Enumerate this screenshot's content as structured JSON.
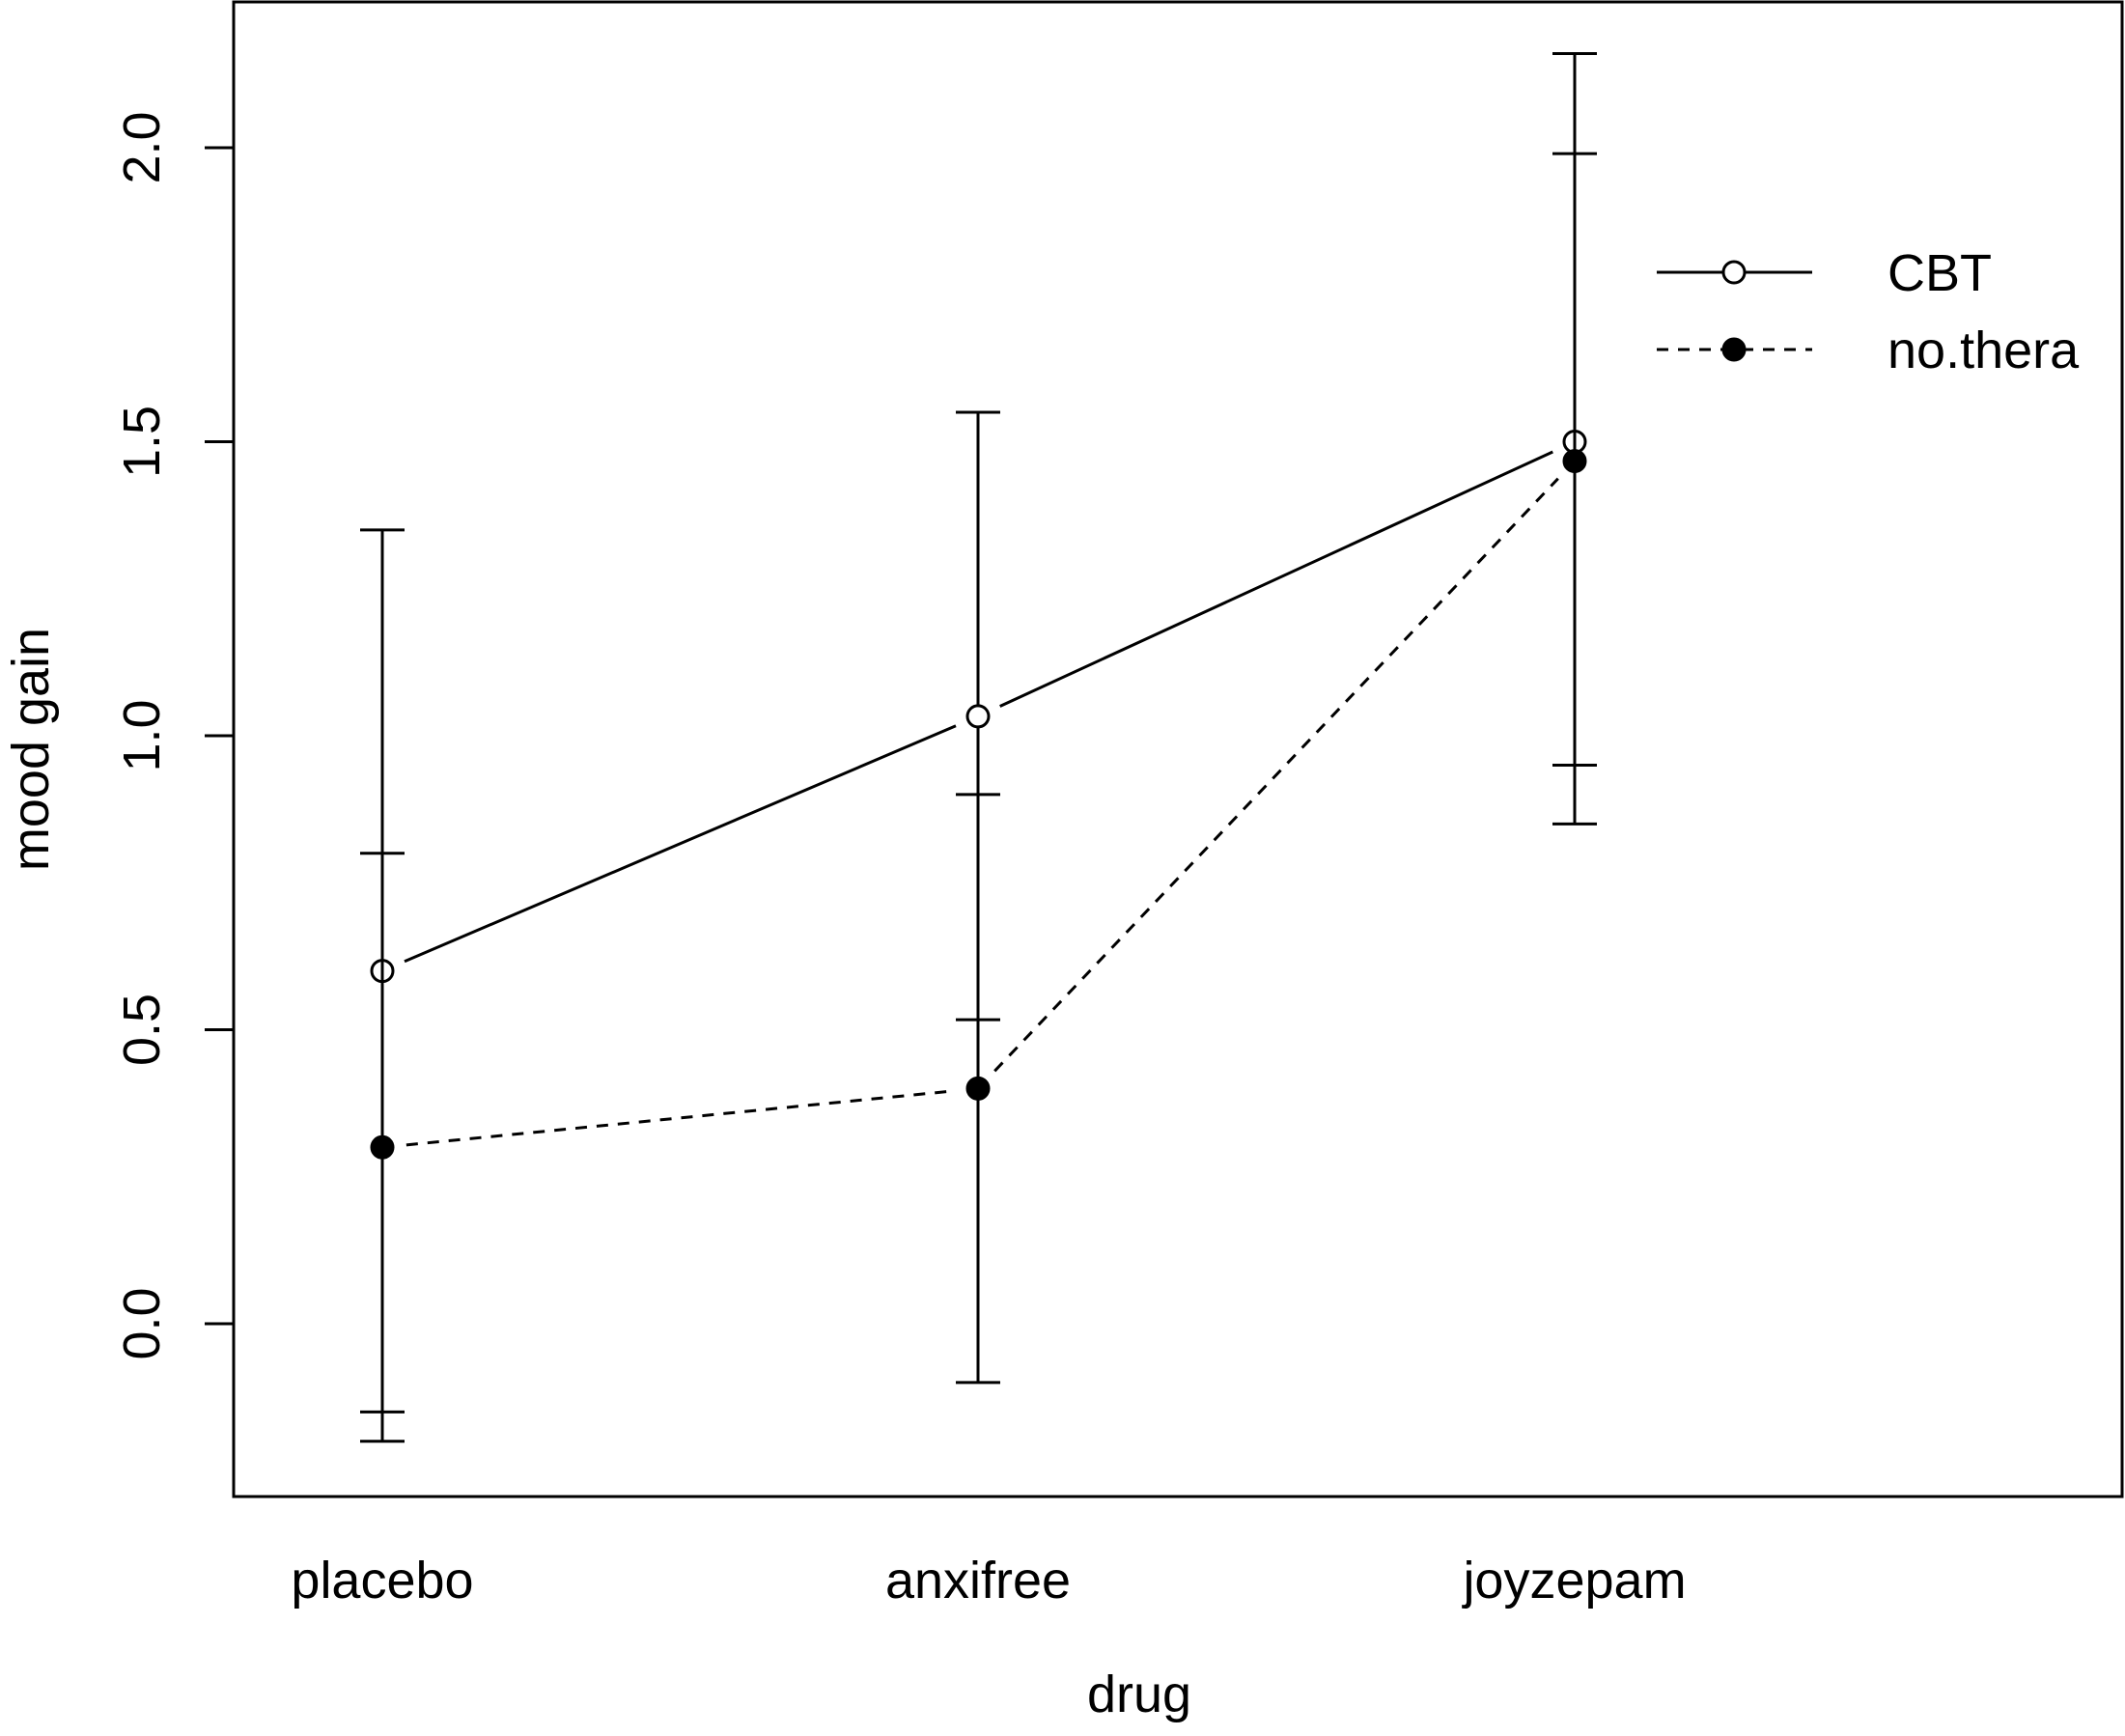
{
  "chart_data": {
    "type": "line",
    "title": "",
    "xlabel": "drug",
    "ylabel": "mood gain",
    "categories": [
      "placebo",
      "anxifree",
      "joyzepam"
    ],
    "ylim": [
      -0.29,
      2.25
    ],
    "yticks": [
      "0.0",
      "0.5",
      "1.0",
      "1.5",
      "2.0"
    ],
    "legend_position": "top-right",
    "grid": false,
    "series": [
      {
        "name": "CBT",
        "marker": "open-circle",
        "line": "solid",
        "values": [
          0.6,
          1.033,
          1.5
        ],
        "ci_lower": [
          -0.2,
          0.517,
          0.85
        ],
        "ci_upper": [
          0.8,
          1.55,
          2.16
        ]
      },
      {
        "name": "no.thera",
        "marker": "filled-circle",
        "line": "dashed",
        "values": [
          0.3,
          0.4,
          1.467
        ],
        "ci_lower": [
          -0.15,
          -0.1,
          0.95
        ],
        "ci_upper": [
          1.35,
          0.9,
          1.99
        ]
      }
    ]
  }
}
